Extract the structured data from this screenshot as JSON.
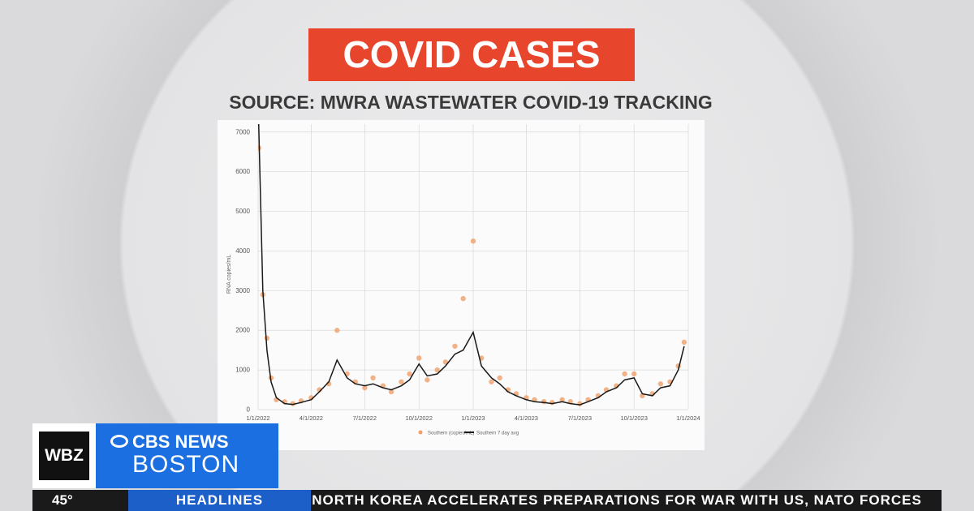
{
  "banner": {
    "title": "COVID CASES",
    "source": "SOURCE: MWRA WASTEWATER COVID-19 TRACKING"
  },
  "chart_data": {
    "type": "line",
    "y_label": "RNA copies/mL",
    "x": [
      "1/2/2022",
      "1/9/2022",
      "1/16/2022",
      "1/23/2022",
      "2/1/2022",
      "2/15/2022",
      "3/1/2022",
      "3/15/2022",
      "4/1/2022",
      "4/15/2022",
      "5/1/2022",
      "5/15/2022",
      "6/1/2022",
      "6/15/2022",
      "7/1/2022",
      "7/15/2022",
      "8/1/2022",
      "8/15/2022",
      "9/1/2022",
      "9/15/2022",
      "10/1/2022",
      "10/15/2022",
      "11/1/2022",
      "11/15/2022",
      "12/1/2022",
      "12/15/2022",
      "1/1/2023",
      "1/15/2023",
      "2/1/2023",
      "2/15/2023",
      "3/1/2023",
      "3/15/2023",
      "4/1/2023",
      "4/15/2023",
      "5/1/2023",
      "5/15/2023",
      "6/1/2023",
      "6/15/2023",
      "7/1/2023",
      "7/15/2023",
      "8/1/2023",
      "8/15/2023",
      "9/1/2023",
      "9/15/2023",
      "10/1/2023",
      "10/15/2023",
      "11/1/2023",
      "11/15/2023",
      "12/1/2023",
      "12/15/2023",
      "12/25/2023"
    ],
    "series": [
      {
        "name": "Southern (copies/mL)",
        "color": "#f0a06a",
        "style": "dots",
        "values": [
          6600,
          2900,
          1800,
          800,
          250,
          200,
          150,
          220,
          300,
          500,
          650,
          2000,
          900,
          700,
          550,
          800,
          600,
          450,
          700,
          900,
          1300,
          750,
          1000,
          1200,
          1600,
          2800,
          4250,
          1300,
          700,
          800,
          500,
          400,
          300,
          250,
          200,
          180,
          250,
          200,
          150,
          250,
          350,
          500,
          600,
          900,
          900,
          350,
          400,
          650,
          700,
          1100,
          1700
        ]
      },
      {
        "name": "Southern 7 day avg",
        "color": "#1a1a1a",
        "style": "line",
        "values": [
          7200,
          3000,
          1500,
          700,
          300,
          150,
          130,
          180,
          250,
          450,
          700,
          1250,
          800,
          650,
          600,
          650,
          550,
          500,
          600,
          750,
          1150,
          850,
          900,
          1100,
          1400,
          1500,
          1950,
          1100,
          800,
          650,
          450,
          350,
          250,
          200,
          180,
          150,
          200,
          150,
          120,
          200,
          300,
          450,
          550,
          750,
          800,
          400,
          350,
          550,
          600,
          1000,
          1600
        ]
      }
    ],
    "xlim": [
      "1/1/2022",
      "1/1/2024"
    ],
    "xticks": [
      "1/1/2022",
      "4/1/2022",
      "7/1/2022",
      "10/1/2022",
      "1/1/2023",
      "4/1/2023",
      "7/1/2023",
      "10/1/2023",
      "1/1/2024"
    ],
    "ylim": [
      0,
      7200
    ],
    "yticks": [
      0,
      1000,
      2000,
      3000,
      4000,
      5000,
      6000,
      7000
    ],
    "grid": true
  },
  "station": {
    "call": "WBZ",
    "network": "CBS NEWS",
    "city": "BOSTON"
  },
  "ticker": {
    "temperature": "45°",
    "section": "HEADLINES",
    "headline": "NORTH KOREA ACCELERATES PREPARATIONS FOR WAR WITH US, NATO FORCES"
  }
}
